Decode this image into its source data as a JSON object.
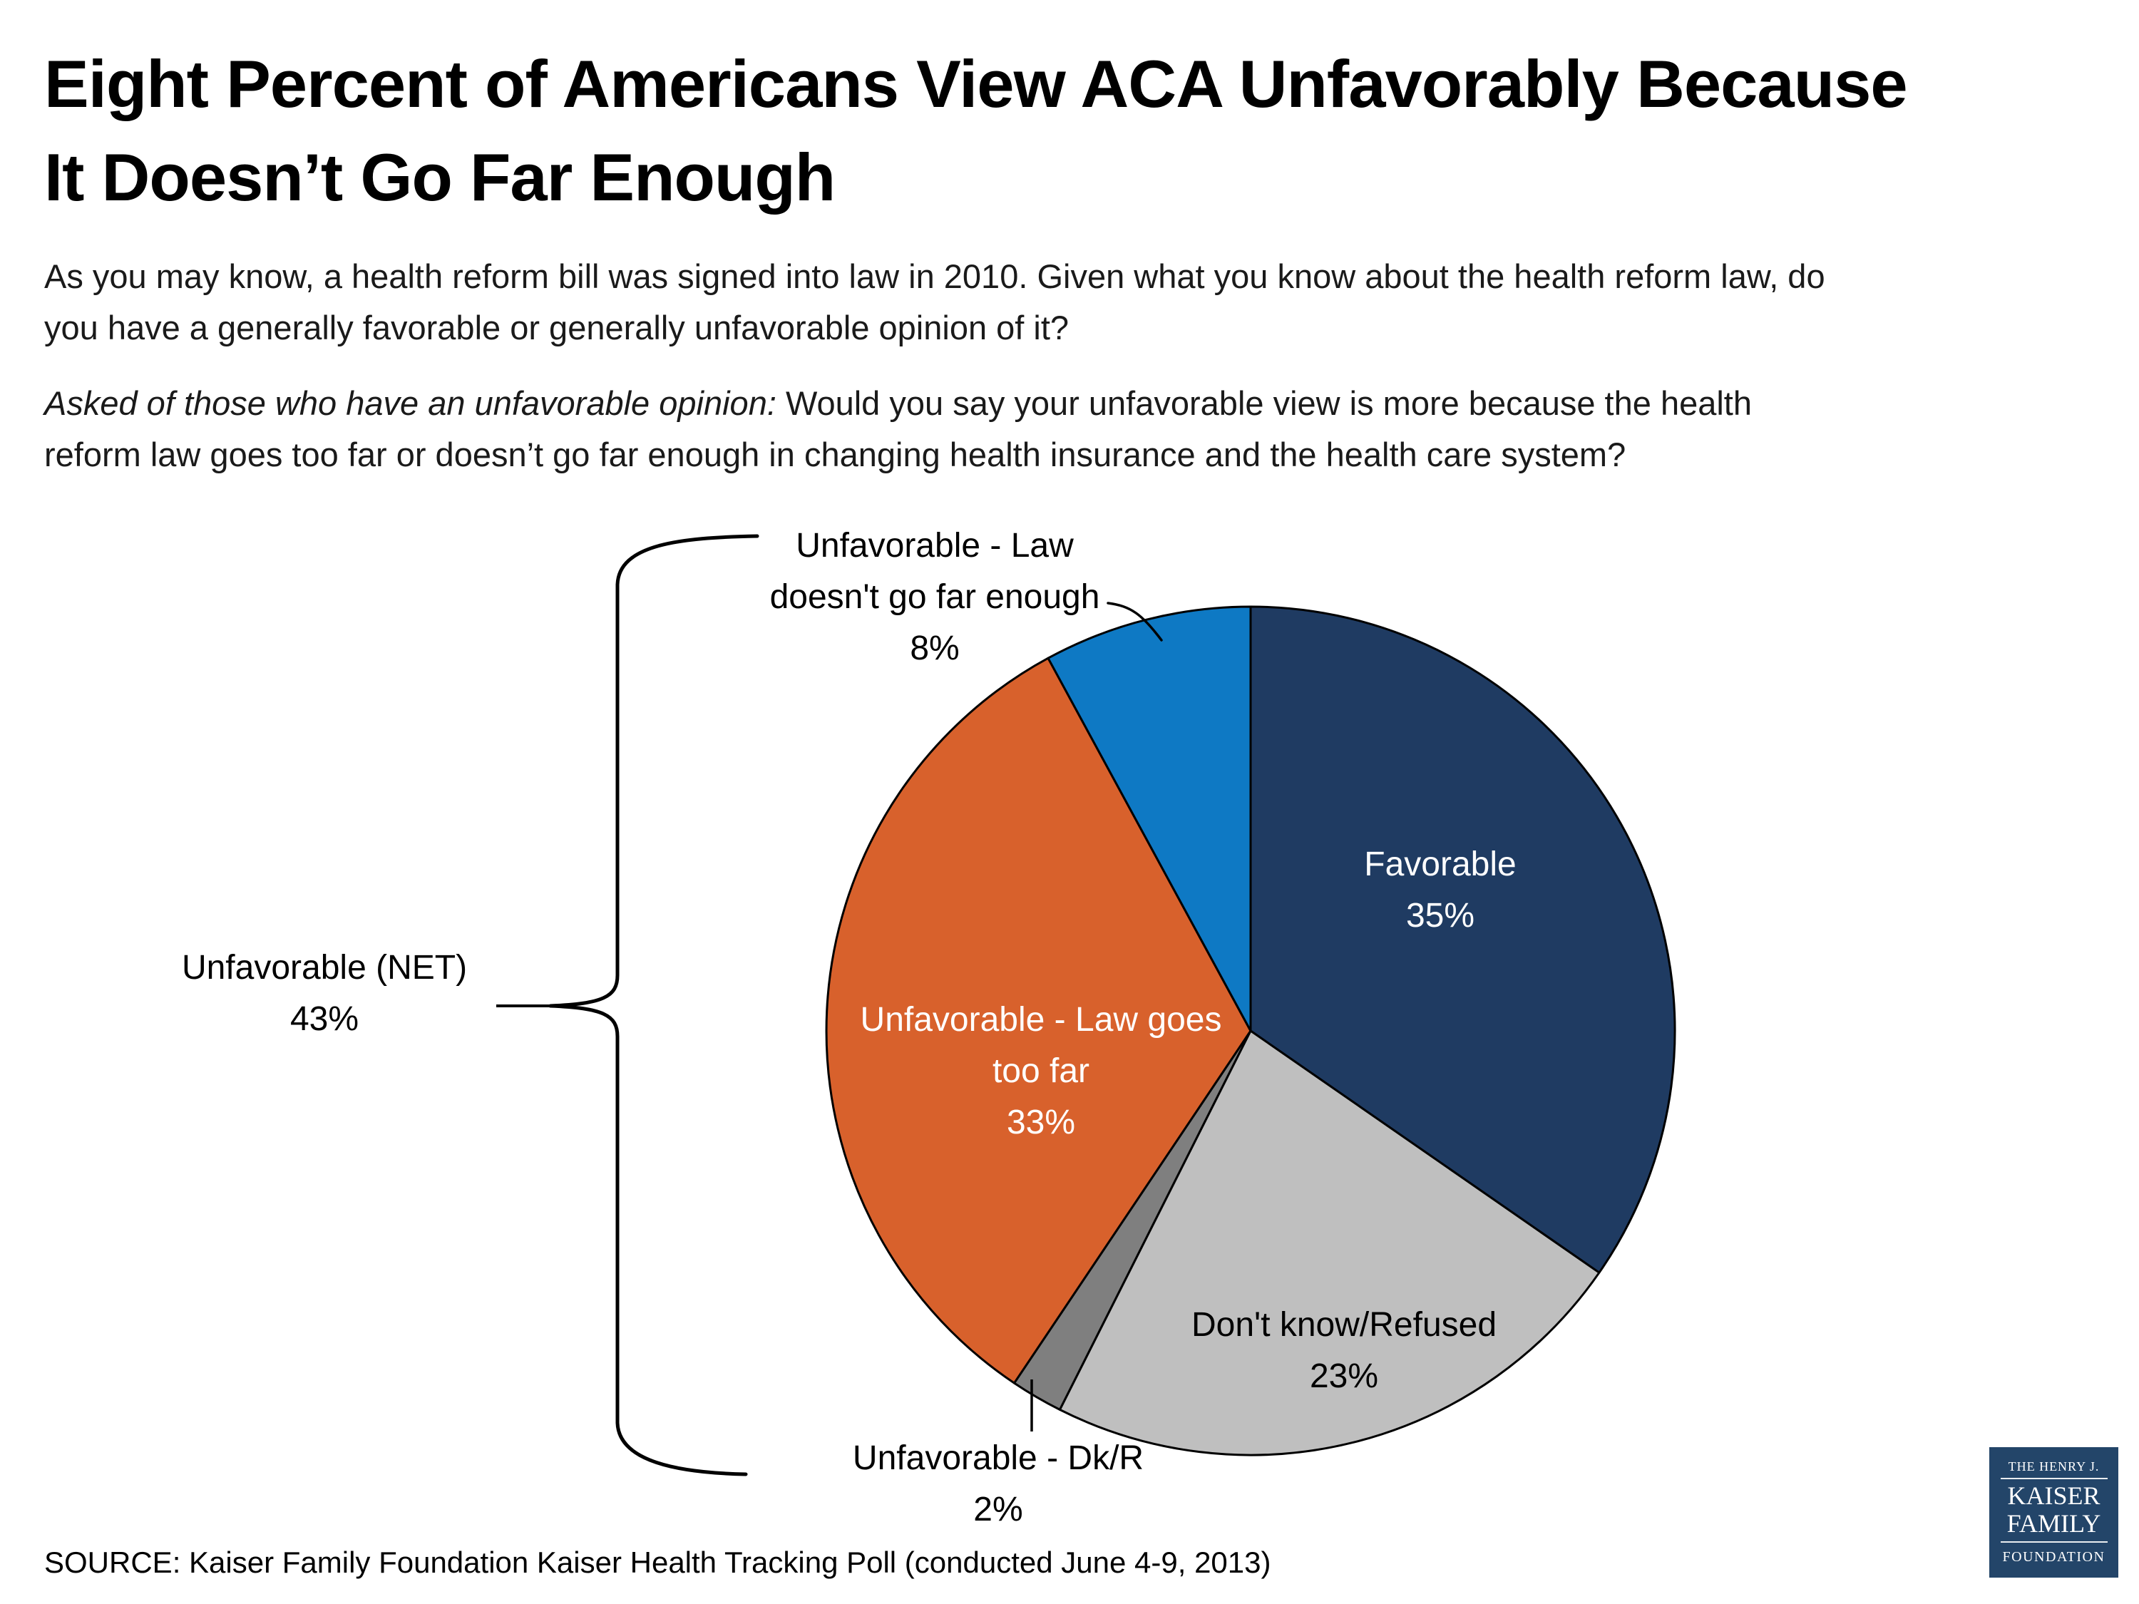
{
  "title": {
    "line1": "Eight Percent of Americans View ACA Unfavorably Because",
    "line2": "It Doesn’t Go Far Enough"
  },
  "intro": {
    "line1": "As you may know, a health reform bill was signed into law in 2010. Given what you know about the health reform law, do",
    "line2": "you have a generally favorable or generally unfavorable opinion of it?",
    "line3_italic": "Asked of those who have an unfavorable opinion:",
    "line3_rest": " Would you say your unfavorable view is more because the health",
    "line4": "reform law goes too far or doesn’t go far enough in changing health insurance and the health care system?"
  },
  "chart_data": {
    "type": "pie",
    "title": "Opinion of the health reform law",
    "start_angle_deg_from_top": 0,
    "direction": "clockwise",
    "slices": [
      {
        "id": "favorable",
        "label": "Favorable",
        "value": 35,
        "color": "#1F3B62",
        "label_color": "#FFFFFF"
      },
      {
        "id": "dont-know-refused",
        "label": "Don't know/Refused",
        "value": 23,
        "color": "#BFBFBF",
        "label_color": "#000000"
      },
      {
        "id": "unfavorable-dkr",
        "label": "Unfavorable - Dk/R",
        "value": 2,
        "color": "#7F7F7F",
        "label_color": "#000000"
      },
      {
        "id": "law-goes-too-far",
        "label": "Unfavorable - Law goes too far",
        "value": 33,
        "color": "#D8612C",
        "label_color": "#FFFFFF"
      },
      {
        "id": "law-doesnt-go-far-enough",
        "label": "Unfavorable - Law doesn't go far enough",
        "value": 8,
        "color": "#0E79C4",
        "label_color": "#000000"
      }
    ],
    "annotations": [
      {
        "id": "net",
        "label": "Unfavorable (NET)",
        "value": "43%"
      }
    ],
    "legend": "none",
    "labels_on_slices": true
  },
  "labels": {
    "favorable_line1": "Favorable",
    "favorable_line2": "35%",
    "toofar_line1": "Unfavorable - Law goes",
    "toofar_line2": "too far",
    "toofar_line3": "33%",
    "dk_line1": "Don't know/Refused",
    "dk_line2": "23%",
    "notfar_line1": "Unfavorable - Law",
    "notfar_line2": "doesn't go far enough",
    "notfar_line3": "8%",
    "dkr_line1": "Unfavorable - Dk/R",
    "dkr_line2": "2%",
    "net_line1": "Unfavorable (NET)",
    "net_line2": "43%"
  },
  "source": "SOURCE: Kaiser Family Foundation Kaiser Health Tracking Poll (conducted June 4-9, 2013)",
  "logo": {
    "line1": "THE HENRY J.",
    "line2": "KAISER",
    "line3": "FAMILY",
    "line4": "FOUNDATION",
    "bg": "#234569"
  }
}
